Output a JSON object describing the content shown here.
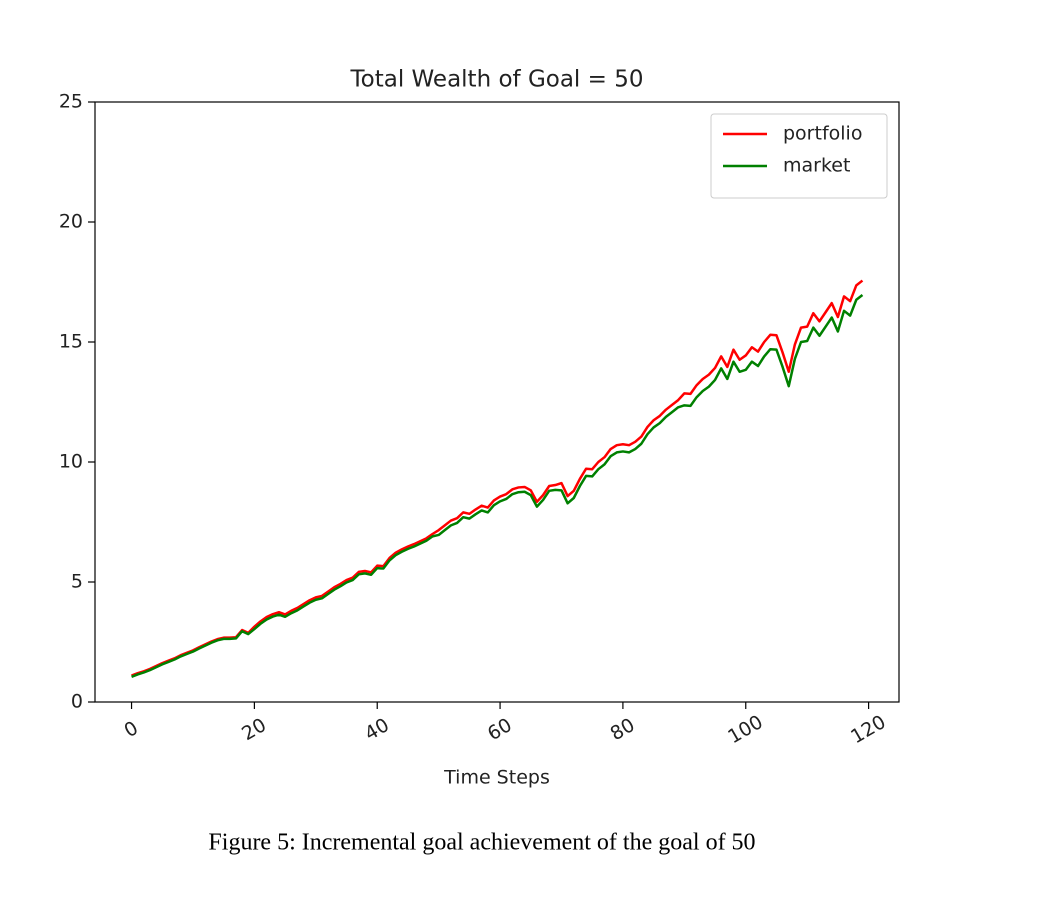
{
  "chart_data": {
    "type": "line",
    "title": "Total Wealth of Goal = 50",
    "xlabel": "Time Steps",
    "x": [
      0,
      1,
      2,
      3,
      4,
      5,
      6,
      7,
      8,
      9,
      10,
      11,
      12,
      13,
      14,
      15,
      16,
      17,
      18,
      19,
      20,
      21,
      22,
      23,
      24,
      25,
      26,
      27,
      28,
      29,
      30,
      31,
      32,
      33,
      34,
      35,
      36,
      37,
      38,
      39,
      40,
      41,
      42,
      43,
      44,
      45,
      46,
      47,
      48,
      49,
      50,
      51,
      52,
      53,
      54,
      55,
      56,
      57,
      58,
      59,
      60,
      61,
      62,
      63,
      64,
      65,
      66,
      67,
      68,
      69,
      70,
      71,
      72,
      73,
      74,
      75,
      76,
      77,
      78,
      79,
      80,
      81,
      82,
      83,
      84,
      85,
      86,
      87,
      88,
      89,
      90,
      91,
      92,
      93,
      94,
      95,
      96,
      97,
      98,
      99,
      100,
      101,
      102,
      103,
      104,
      105,
      106,
      107,
      108,
      109,
      110,
      111,
      112,
      113,
      114,
      115,
      116,
      117,
      118,
      119
    ],
    "series": [
      {
        "name": "portfolio",
        "color": "#ff0000",
        "values": [
          1.1,
          1.2,
          1.28,
          1.38,
          1.5,
          1.62,
          1.72,
          1.82,
          1.95,
          2.05,
          2.15,
          2.28,
          2.4,
          2.52,
          2.62,
          2.68,
          2.68,
          2.7,
          3.0,
          2.88,
          3.14,
          3.36,
          3.54,
          3.66,
          3.74,
          3.65,
          3.8,
          3.92,
          4.08,
          4.24,
          4.36,
          4.42,
          4.6,
          4.78,
          4.92,
          5.08,
          5.18,
          5.42,
          5.46,
          5.4,
          5.68,
          5.66,
          6.0,
          6.22,
          6.36,
          6.48,
          6.58,
          6.7,
          6.82,
          7.0,
          7.16,
          7.36,
          7.56,
          7.66,
          7.9,
          7.84,
          8.02,
          8.18,
          8.1,
          8.4,
          8.56,
          8.66,
          8.86,
          8.94,
          8.96,
          8.82,
          8.34,
          8.62,
          9.0,
          9.04,
          9.12,
          8.58,
          8.8,
          9.3,
          9.72,
          9.7,
          10.0,
          10.2,
          10.54,
          10.7,
          10.74,
          10.7,
          10.84,
          11.06,
          11.46,
          11.74,
          11.92,
          12.18,
          12.38,
          12.58,
          12.86,
          12.84,
          13.2,
          13.46,
          13.64,
          13.92,
          14.4,
          13.96,
          14.68,
          14.26,
          14.44,
          14.78,
          14.6,
          15.0,
          15.3,
          15.28,
          14.56,
          13.76,
          14.9,
          15.6,
          15.64,
          16.2,
          15.86,
          16.24,
          16.62,
          16.04,
          16.9,
          16.7,
          17.36,
          17.56
        ]
      },
      {
        "name": "market",
        "color": "#008000",
        "values": [
          1.05,
          1.15,
          1.23,
          1.33,
          1.45,
          1.57,
          1.67,
          1.77,
          1.9,
          2.0,
          2.1,
          2.23,
          2.35,
          2.47,
          2.57,
          2.63,
          2.63,
          2.65,
          2.95,
          2.83,
          3.04,
          3.26,
          3.44,
          3.56,
          3.64,
          3.55,
          3.7,
          3.82,
          3.98,
          4.14,
          4.26,
          4.32,
          4.5,
          4.68,
          4.82,
          4.98,
          5.08,
          5.32,
          5.36,
          5.3,
          5.58,
          5.56,
          5.9,
          6.12,
          6.26,
          6.38,
          6.48,
          6.6,
          6.72,
          6.9,
          6.96,
          7.16,
          7.36,
          7.46,
          7.7,
          7.64,
          7.82,
          7.98,
          7.9,
          8.2,
          8.36,
          8.46,
          8.66,
          8.74,
          8.76,
          8.62,
          8.14,
          8.42,
          8.8,
          8.84,
          8.82,
          8.28,
          8.5,
          9.0,
          9.42,
          9.4,
          9.7,
          9.9,
          10.24,
          10.4,
          10.44,
          10.4,
          10.54,
          10.76,
          11.16,
          11.44,
          11.62,
          11.88,
          12.08,
          12.28,
          12.36,
          12.34,
          12.7,
          12.96,
          13.14,
          13.42,
          13.9,
          13.46,
          14.18,
          13.76,
          13.84,
          14.18,
          14.0,
          14.4,
          14.7,
          14.68,
          13.96,
          13.16,
          14.3,
          15.0,
          15.04,
          15.6,
          15.26,
          15.64,
          16.02,
          15.44,
          16.3,
          16.1,
          16.76,
          16.96
        ]
      }
    ],
    "xlim": [
      -5.95,
      124.95
    ],
    "xticks": [
      0,
      20,
      40,
      60,
      80,
      100,
      120
    ],
    "ylim": [
      0,
      25
    ],
    "yticks": [
      0,
      5,
      10,
      15,
      20,
      25
    ],
    "legend": "upper right"
  },
  "caption": "Figure 5: Incremental goal achievement of the goal of 50"
}
